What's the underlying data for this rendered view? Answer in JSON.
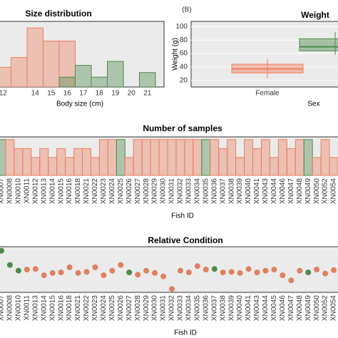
{
  "chart_data": [
    {
      "type": "histbar",
      "title": "Size distribution",
      "x_label": "Body size (cm)",
      "categories": [
        "12",
        null,
        "14",
        "15",
        "16",
        "17",
        "18",
        "19",
        "20",
        "21"
      ],
      "series": [
        {
          "color": "#ee7f5f",
          "values": [
            3,
            4.5,
            9,
            7,
            7,
            null,
            null,
            null,
            null,
            null
          ]
        },
        {
          "color": "#4f8a4d",
          "values": [
            null,
            null,
            null,
            null,
            1.5,
            3.3,
            1.5,
            3.9,
            null,
            2.2
          ]
        }
      ],
      "ylim": [
        0,
        10
      ]
    },
    {
      "type": "box",
      "panel_label": "(B)",
      "title": "Weight",
      "x_label": "Sex",
      "y_label": "Weight (g)",
      "categories": [
        "Female",
        null
      ],
      "boxes": [
        {
          "min": 23,
          "q1": 31,
          "median": 37,
          "q3": 44,
          "max": 52,
          "color": "#ee7f5f"
        },
        {
          "min": 58,
          "q1": 64,
          "median": 70,
          "q3": 82,
          "max": 92,
          "color": "#4f8a4d"
        }
      ],
      "ylim": [
        10,
        108
      ],
      "yticks": [
        20,
        40,
        60,
        80,
        100
      ],
      "grid": true
    },
    {
      "type": "bar",
      "title": "Number of samples",
      "x_label": "Fish ID",
      "categories": [
        "XN0007",
        "XN0008",
        "XN0010",
        "XN0011",
        "XN0012",
        "XN0013",
        "XN0014",
        "XN0015",
        "XN0016",
        "XN0018",
        "XN0021",
        "XN0022",
        "XN0023",
        "XN0024",
        "XN0025",
        "XN0026",
        "XN0027",
        "XN0028",
        "XN0029",
        "XN0030",
        "XN0031",
        "XN0032",
        "XN0033",
        "XN0034",
        "XN0035",
        "XN0036",
        "XN0037",
        "XN0038",
        "XN0039",
        "XN0040",
        "XN0041",
        "XN0043",
        "XN0044",
        "XN0046",
        "XN0047",
        "XN0048",
        "XN0049",
        "XN0050",
        "XN0052",
        "XN0054"
      ],
      "values": [
        4,
        4,
        3,
        3,
        2,
        3,
        2,
        3,
        2,
        3,
        3,
        2,
        4,
        4,
        4,
        2,
        4,
        4,
        4,
        4,
        4,
        4,
        4,
        4,
        4,
        4,
        3,
        4,
        2,
        4,
        3,
        4,
        2,
        4,
        3,
        4,
        4,
        2,
        4,
        2
      ],
      "colors": [
        "#4f8a4d",
        "#ee7f5f",
        "#ee7f5f",
        "#ee7f5f",
        "#ee7f5f",
        "#ee7f5f",
        "#ee7f5f",
        "#ee7f5f",
        "#ee7f5f",
        "#ee7f5f",
        "#ee7f5f",
        "#ee7f5f",
        "#ee7f5f",
        "#ee7f5f",
        "#4f8a4d",
        "#ee7f5f",
        "#ee7f5f",
        "#ee7f5f",
        "#ee7f5f",
        "#ee7f5f",
        "#ee7f5f",
        "#ee7f5f",
        "#ee7f5f",
        "#ee7f5f",
        "#4f8a4d",
        "#ee7f5f",
        "#ee7f5f",
        "#ee7f5f",
        "#ee7f5f",
        "#ee7f5f",
        "#ee7f5f",
        "#ee7f5f",
        "#ee7f5f",
        "#ee7f5f",
        "#ee7f5f",
        "#ee7f5f",
        "#4f8a4d",
        "#ee7f5f",
        "#ee7f5f",
        "#ee7f5f"
      ],
      "ylim": [
        0,
        4.3
      ]
    },
    {
      "type": "dots",
      "title": "Relative Condition",
      "x_label": "Fish ID",
      "categories": [
        "XN0007",
        "XN0008",
        "XN0010",
        "XN0011",
        "XN0013",
        "XN0014",
        "XN0015",
        "XN0016",
        "XN0018",
        "XN0021",
        "XN0022",
        "XN0023",
        "XN0024",
        "XN0025",
        "XN0026",
        "XN0027",
        "XN0028",
        "XN0029",
        "XN0030",
        "XN0031",
        "XN0032",
        "XN0033",
        "XN0034",
        "XN0035",
        "XN0036",
        "XN0037",
        "XN0038",
        "XN0039",
        "XN0040",
        "XN0041",
        "XN0043",
        "XN0044",
        "XN0045",
        "XN0046",
        "XN0047",
        "XN0048",
        "XN0049",
        "XN0050",
        "XN0052",
        "XN0054"
      ],
      "values": [
        1.33,
        1.08,
        0.98,
        1.0,
        1.01,
        0.9,
        0.94,
        0.95,
        1.04,
        0.94,
        0.96,
        1.04,
        0.9,
        0.98,
        1.08,
        0.95,
        0.91,
        0.98,
        0.94,
        0.88,
        0.66,
        0.98,
        0.95,
        1.06,
        1.0,
        1.01,
        0.95,
        0.96,
        0.94,
        1.01,
        0.95,
        0.98,
        1.0,
        0.9,
        0.81,
        0.98,
        0.95,
        1.0,
        0.93,
        0.99
      ],
      "colors": [
        "#4f8a4d",
        "#4f8a4d",
        "#4f8a4d",
        "#e0805f",
        "#e0805f",
        "#e0805f",
        "#e0805f",
        "#e0805f",
        "#e0805f",
        "#e0805f",
        "#e0805f",
        "#e0805f",
        "#e0805f",
        "#e0805f",
        "#e0805f",
        "#4f8a4d",
        "#e0805f",
        "#e0805f",
        "#e0805f",
        "#e0805f",
        "#e0805f",
        "#e0805f",
        "#e0805f",
        "#e0805f",
        "#e0805f",
        "#4f8a4d",
        "#e0805f",
        "#e0805f",
        "#e0805f",
        "#e0805f",
        "#e0805f",
        "#e0805f",
        "#e0805f",
        "#e0805f",
        "#e0805f",
        "#e0805f",
        "#4f8a4d",
        "#e0805f",
        "#e0805f",
        "#e0805f"
      ],
      "ylim": [
        0.6,
        1.4
      ]
    }
  ]
}
